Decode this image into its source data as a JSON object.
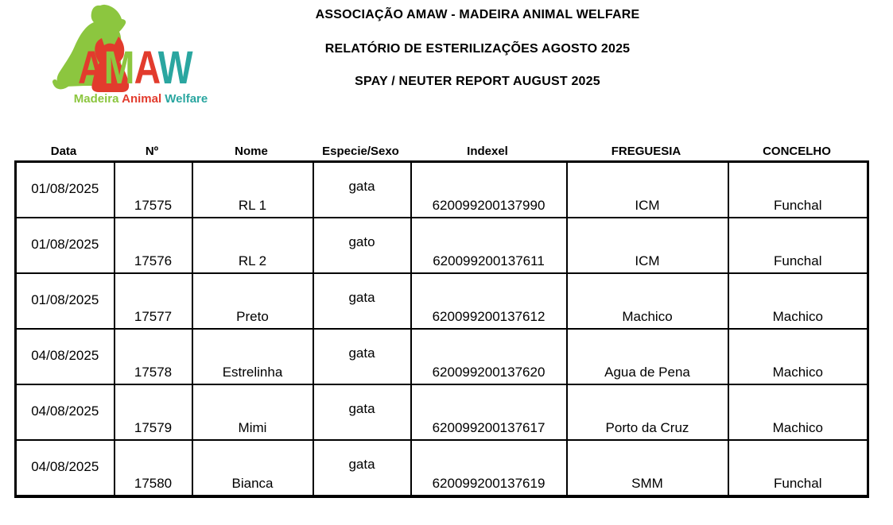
{
  "logo": {
    "letters": [
      {
        "char": "A",
        "color": "#e23b2d"
      },
      {
        "char": "M",
        "color": "#8cc63f"
      },
      {
        "char": "A",
        "color": "#e23b2d"
      },
      {
        "char": "W",
        "color": "#2aa6a0"
      }
    ],
    "tagline": [
      {
        "word": "Madeira",
        "color": "#8cc63f"
      },
      {
        "word": "Animal",
        "color": "#e23b2d"
      },
      {
        "word": "Welfare",
        "color": "#2aa6a0"
      }
    ],
    "dog_color": "#8cc63f",
    "cat_color": "#e23b2d"
  },
  "titles": {
    "line1": "ASSOCIAÇÃO AMAW - MADEIRA ANIMAL WELFARE",
    "line2": "RELATÓRIO DE ESTERILIZAÇÕES AGOSTO 2025",
    "line3": "SPAY / NEUTER REPORT AUGUST 2025"
  },
  "table": {
    "columns": [
      "Data",
      "Nº",
      "Nome",
      "Especie/Sexo",
      "Indexel",
      "FREGUESIA",
      "CONCELHO"
    ],
    "rows": [
      {
        "data": "01/08/2025",
        "numero": "17575",
        "nome": "RL 1",
        "especie_sexo": "gata",
        "indexel": "620099200137990",
        "freguesia": "ICM",
        "concelho": "Funchal"
      },
      {
        "data": "01/08/2025",
        "numero": "17576",
        "nome": "RL 2",
        "especie_sexo": "gato",
        "indexel": "620099200137611",
        "freguesia": "ICM",
        "concelho": "Funchal"
      },
      {
        "data": "01/08/2025",
        "numero": "17577",
        "nome": "Preto",
        "especie_sexo": "gata",
        "indexel": "620099200137612",
        "freguesia": "Machico",
        "concelho": "Machico"
      },
      {
        "data": "04/08/2025",
        "numero": "17578",
        "nome": "Estrelinha",
        "especie_sexo": "gata",
        "indexel": "620099200137620",
        "freguesia": "Agua de Pena",
        "concelho": "Machico"
      },
      {
        "data": "04/08/2025",
        "numero": "17579",
        "nome": "Mimi",
        "especie_sexo": "gata",
        "indexel": "620099200137617",
        "freguesia": "Porto da Cruz",
        "concelho": "Machico"
      },
      {
        "data": "04/08/2025",
        "numero": "17580",
        "nome": "Bianca",
        "especie_sexo": "gata",
        "indexel": "620099200137619",
        "freguesia": "SMM",
        "concelho": "Funchal"
      }
    ]
  }
}
